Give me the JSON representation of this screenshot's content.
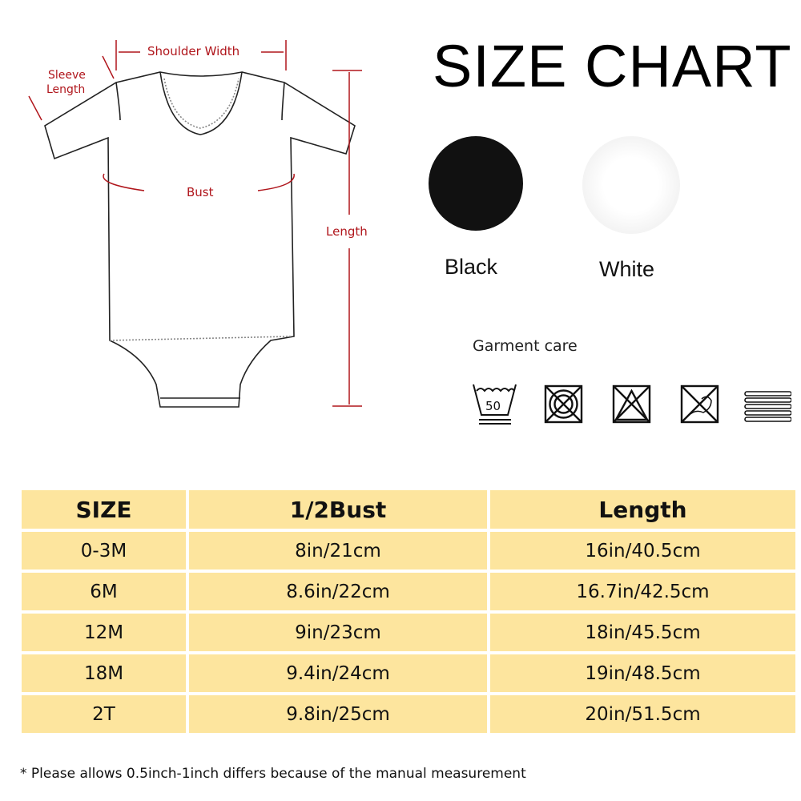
{
  "diagram": {
    "shoulder_width": "Shoulder Width",
    "sleeve_length_1": "Sleeve",
    "sleeve_length_2": "Length",
    "bust": "Bust",
    "length": "Length"
  },
  "title": "SIZE CHART",
  "colors": [
    {
      "label": "Black",
      "hex": "#111111"
    },
    {
      "label": "White",
      "hex": "#f2f2f2"
    }
  ],
  "garment_care": {
    "label": "Garment care",
    "icons": [
      "wash-50-icon",
      "no-tumble-dry-icon",
      "no-bleach-icon",
      "no-dry-clean-icon",
      "dry-flat-icon"
    ],
    "wash_temp": "50"
  },
  "table": {
    "headers": [
      "SIZE",
      "1/2Bust",
      "Length"
    ],
    "rows": [
      [
        "0-3M",
        "8in/21cm",
        "16in/40.5cm"
      ],
      [
        "6M",
        "8.6in/22cm",
        "16.7in/42.5cm"
      ],
      [
        "12M",
        "9in/23cm",
        "18in/45.5cm"
      ],
      [
        "18M",
        "9.4in/24cm",
        "19in/48.5cm"
      ],
      [
        "2T",
        "9.8in/25cm",
        "20in/51.5cm"
      ]
    ]
  },
  "note": "* Please allows 0.5inch-1inch differs because of the manual measurement"
}
